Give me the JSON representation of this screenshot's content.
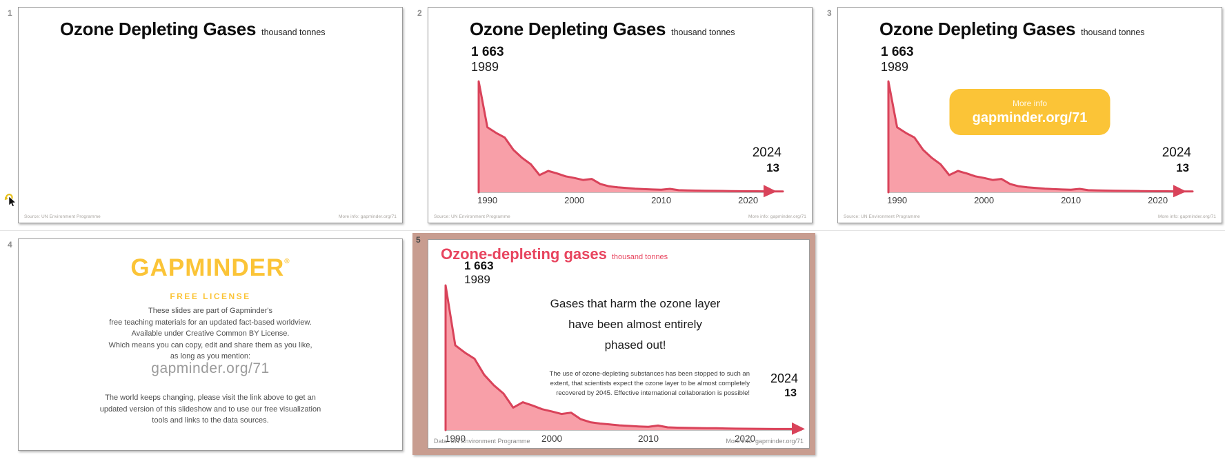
{
  "chart_data": {
    "type": "area",
    "title": "Ozone Depleting Gases",
    "units": "thousand tonnes",
    "x": [
      1989,
      1990,
      1991,
      1992,
      1993,
      1994,
      1995,
      1996,
      1997,
      1998,
      1999,
      2000,
      2001,
      2002,
      2003,
      2004,
      2005,
      2006,
      2007,
      2008,
      2009,
      2010,
      2011,
      2012,
      2013,
      2014,
      2015,
      2016,
      2017,
      2018,
      2019,
      2020,
      2021,
      2022,
      2023,
      2024
    ],
    "values": [
      1663,
      975,
      890,
      820,
      635,
      515,
      420,
      258,
      320,
      283,
      240,
      215,
      185,
      200,
      125,
      90,
      75,
      65,
      55,
      48,
      42,
      38,
      52,
      32,
      28,
      26,
      24,
      22,
      21,
      19,
      17,
      16,
      15,
      14,
      13,
      13
    ],
    "x_tick_years": [
      1990,
      2000,
      2010,
      2020
    ],
    "x_ticks": [
      "1990",
      "2000",
      "2010",
      "2020"
    ],
    "ylim": [
      0,
      1663
    ],
    "xlabel": "",
    "ylabel": "thousand tonnes",
    "grid": false,
    "legend": "none",
    "peak_label": {
      "value": "1 663",
      "year": "1989"
    },
    "latest_label": {
      "year": "2024",
      "value": "13"
    },
    "line_color": "#d9435a",
    "fill_color": "#f89fa8",
    "axis_color": "#9a9a9a",
    "tick_color": "#3c3c3c"
  },
  "slides": [
    {
      "number": "1",
      "title": "Ozone Depleting Gases",
      "units": "thousand tonnes",
      "footer_left": "Source: UN Environment Programme",
      "footer_right": "More info: gapminder.org/71"
    },
    {
      "number": "2",
      "title": "Ozone Depleting Gases",
      "units": "thousand tonnes",
      "footer_left": "Source: UN Environment Programme",
      "footer_right": "More info: gapminder.org/71"
    },
    {
      "number": "3",
      "title": "Ozone Depleting Gases",
      "units": "thousand tonnes",
      "button": {
        "label_top": "More info",
        "label_main": "gapminder.org/71"
      },
      "footer_left": "Source: UN Environment Programme",
      "footer_right": "More info: gapminder.org/71"
    },
    {
      "number": "4",
      "logo": "GAPMINDER",
      "logo_reg": "®",
      "license_title": "FREE LICENSE",
      "body": "These slides are part of Gapminder's\nfree teaching materials for an updated fact-based worldview.\nAvailable under Creative Common BY License.\nWhich means you can copy, edit and share them as you like,\nas long as you mention:",
      "link": "gapminder.org/71",
      "body2": "The world keeps changing, please visit the link above to get an\nupdated version of this slideshow and to use our free visualization\ntools and links to the data sources."
    },
    {
      "number": "5",
      "selected": true,
      "title": "Ozone-depleting gases",
      "units": "thousand tonnes",
      "message": "Gases that harm the ozone layer\nhave been almost entirely\nphased out!",
      "note": "The use of ozone-depleting substances has been stopped to such an extent, that scientists expect the ozone layer to be almost completely recovered by 2045. Effective international collaboration is possible!",
      "footer_left": "Data: UN Environment Programme",
      "footer_right": "More info: gapminder.org/71"
    }
  ],
  "colors": {
    "selection_frame": "#c89d90",
    "slide_border": "#9c9c9c",
    "number_label": "#8f8f8f",
    "selected_number_label": "#4b4b4b",
    "title_text": "#0d0d0d",
    "red_title": "#e8455f",
    "accent_yellow": "#fbc437",
    "footer_text": "#a8a49f",
    "body_text": "#4e4e4e",
    "link_gray": "#9b9b9b"
  }
}
